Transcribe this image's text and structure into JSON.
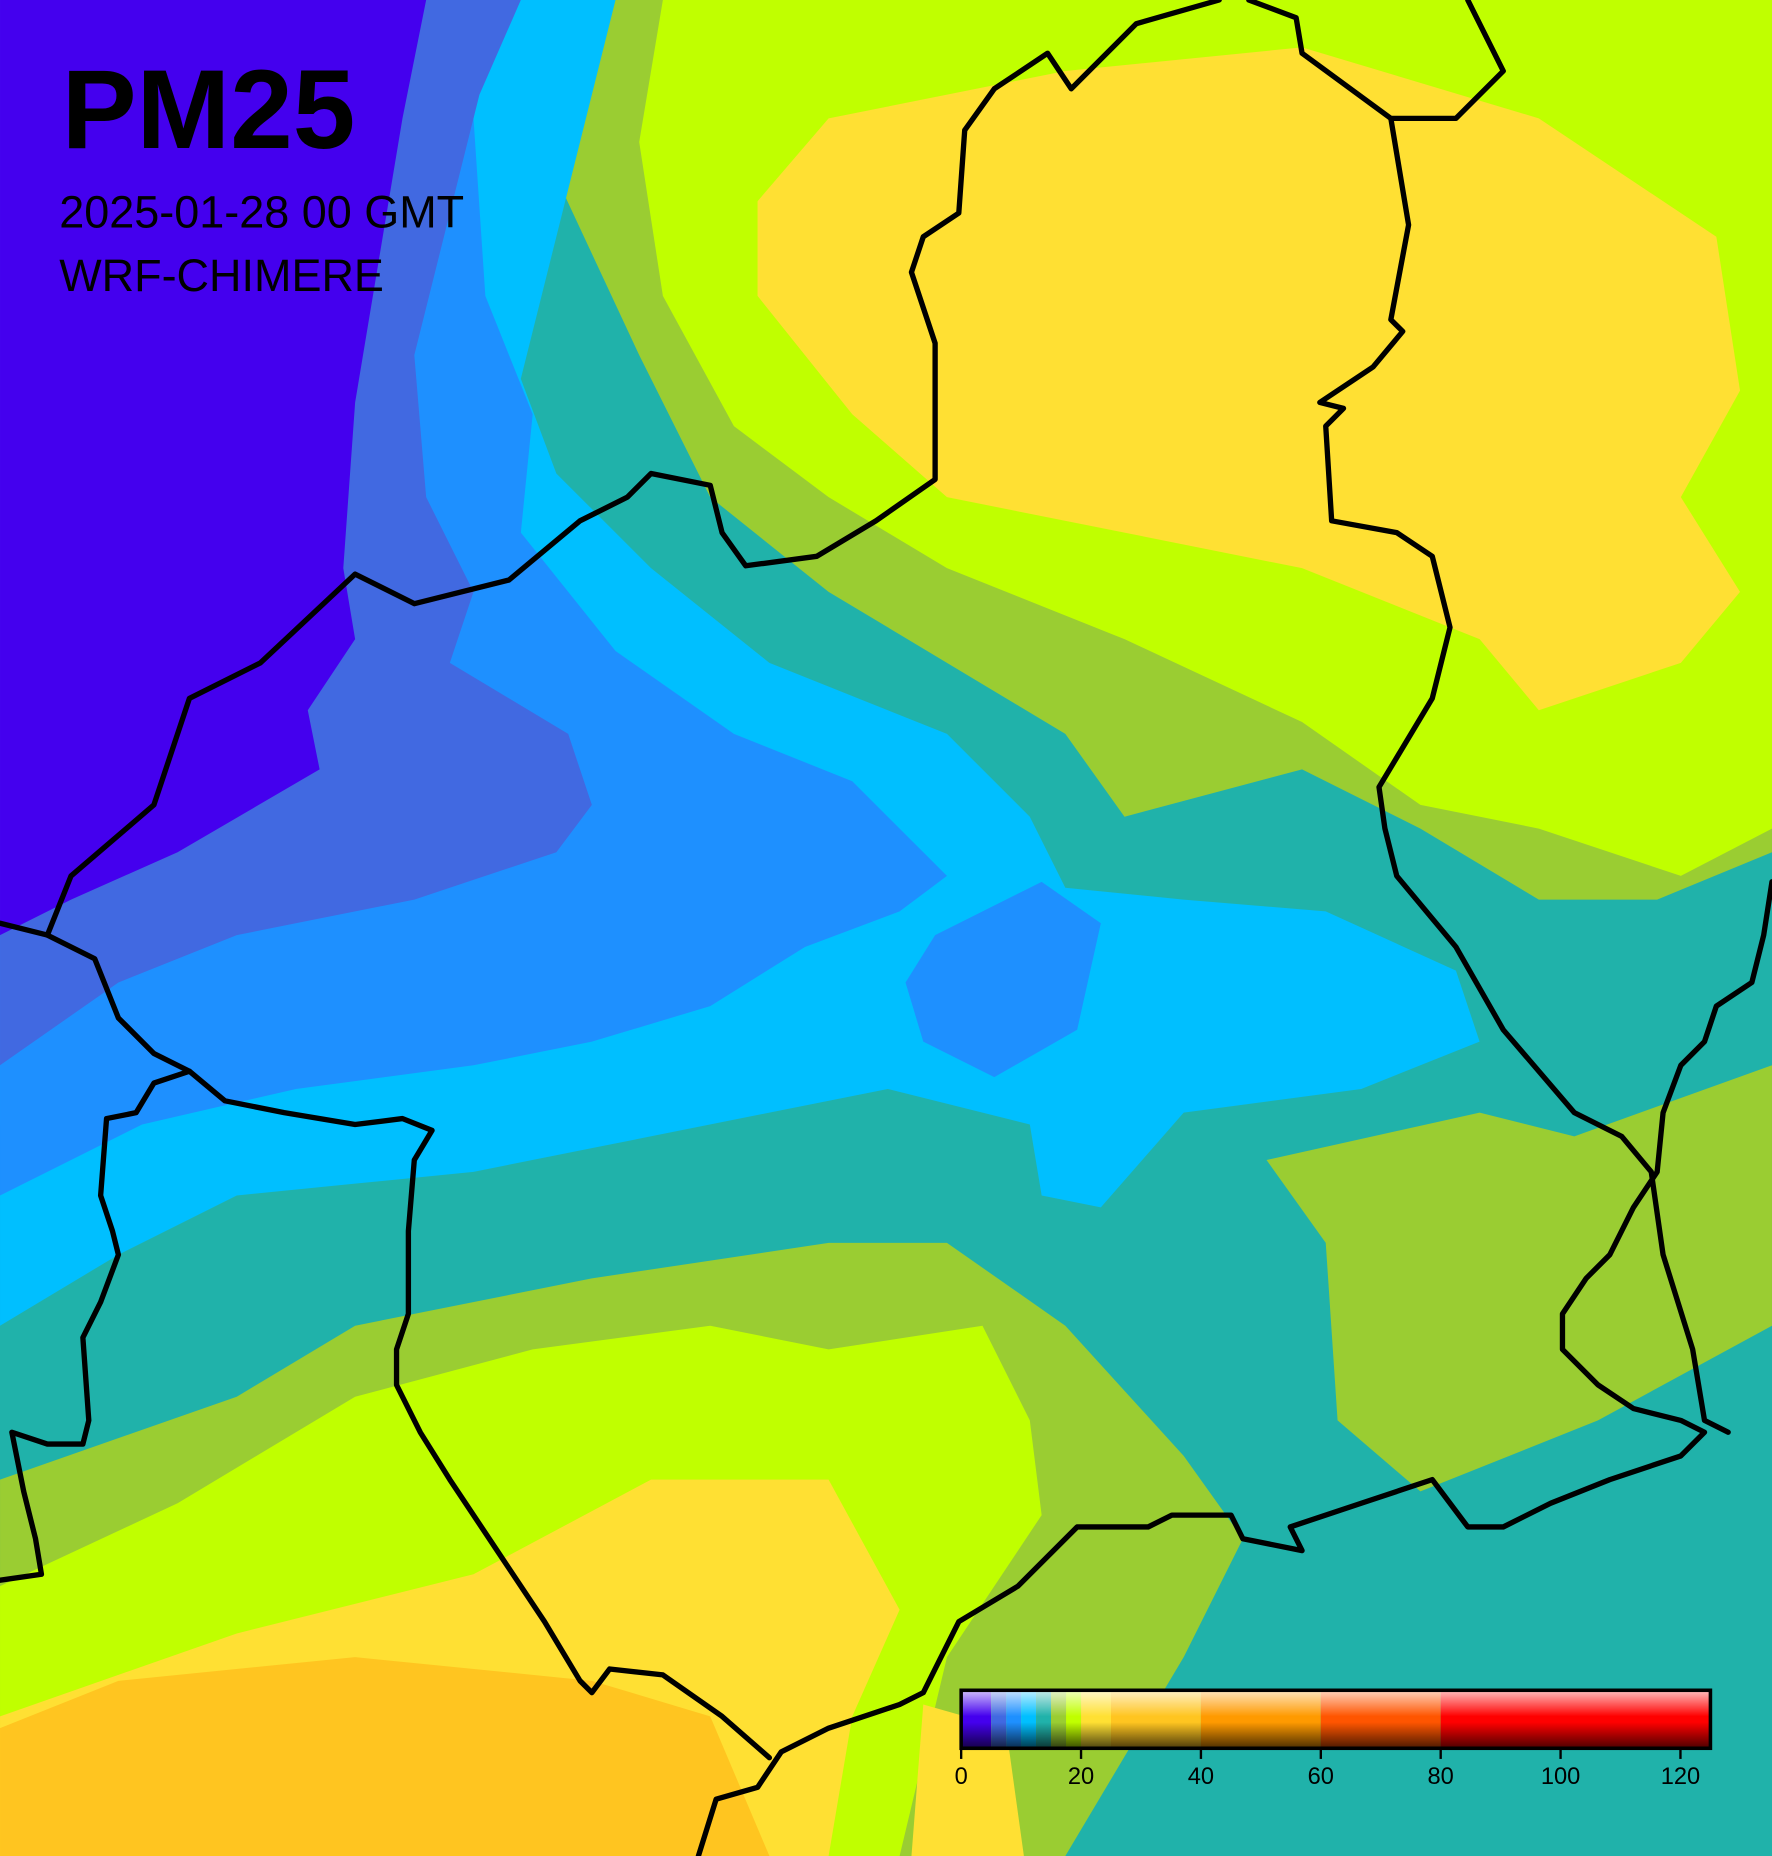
{
  "chart_data": {
    "type": "map",
    "title": "PM25",
    "subtitle": "2025-01-28 00 GMT",
    "model": "WRF-CHIMERE",
    "colorbar": {
      "xlim": [
        0,
        125
      ],
      "xticks": [
        0,
        20,
        40,
        60,
        80,
        100,
        120
      ],
      "bins": [
        0,
        5,
        7.5,
        10,
        12.5,
        15,
        17.5,
        20,
        25,
        40,
        60,
        80,
        125
      ],
      "colors": [
        "#4400ee",
        "#4169e1",
        "#1e90ff",
        "#00bfff",
        "#20b2aa",
        "#9acd32",
        "#c0ff00",
        "#ffe033",
        "#ffc520",
        "#ff9a00",
        "#ff5500",
        "#ff0000"
      ]
    }
  }
}
